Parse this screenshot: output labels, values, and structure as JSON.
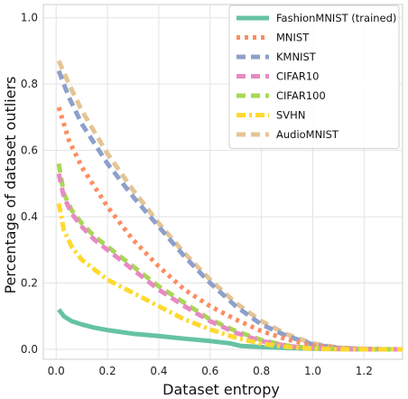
{
  "chart_data": {
    "type": "line",
    "title": "",
    "xlabel": "Dataset entropy",
    "ylabel": "Percentage of dataset outliers",
    "xlim": [
      -0.05,
      1.35
    ],
    "ylim": [
      -0.03,
      1.04
    ],
    "xticks": [
      "0.0",
      "0.2",
      "0.4",
      "0.6",
      "0.8",
      "1.0",
      "1.2"
    ],
    "yticks": [
      "0.0",
      "0.2",
      "0.4",
      "0.6",
      "0.8",
      "1.0"
    ],
    "xtick_values": [
      0.0,
      0.2,
      0.4,
      0.6,
      0.8,
      1.0,
      1.2
    ],
    "ytick_values": [
      0.0,
      0.2,
      0.4,
      0.6,
      0.8,
      1.0
    ],
    "grid": true,
    "legend_position": "top-right",
    "series": [
      {
        "name": "FashionMNIST (trained)",
        "color": "#66c2a5",
        "style": "solid",
        "x": [
          0.01,
          0.03,
          0.06,
          0.1,
          0.15,
          0.2,
          0.3,
          0.4,
          0.5,
          0.6,
          0.68,
          0.72,
          0.8,
          0.9,
          1.0,
          1.1,
          1.2,
          1.35
        ],
        "y": [
          0.12,
          0.1,
          0.085,
          0.075,
          0.065,
          0.058,
          0.047,
          0.04,
          0.032,
          0.025,
          0.018,
          0.01,
          0.007,
          0.004,
          0.002,
          0.001,
          0.0,
          0.0
        ]
      },
      {
        "name": "MNIST",
        "color": "#fc8d62",
        "style": "dotted",
        "x": [
          0.01,
          0.05,
          0.1,
          0.2,
          0.3,
          0.4,
          0.5,
          0.6,
          0.7,
          0.8,
          0.9,
          1.0,
          1.1,
          1.2,
          1.35
        ],
        "y": [
          0.73,
          0.63,
          0.55,
          0.43,
          0.33,
          0.25,
          0.18,
          0.13,
          0.09,
          0.055,
          0.03,
          0.012,
          0.004,
          0.001,
          0.0
        ]
      },
      {
        "name": "KMNIST",
        "color": "#8da0cb",
        "style": "dashed",
        "x": [
          0.01,
          0.05,
          0.1,
          0.2,
          0.3,
          0.4,
          0.5,
          0.6,
          0.7,
          0.8,
          0.9,
          1.0,
          1.1,
          1.2,
          1.35
        ],
        "y": [
          0.84,
          0.76,
          0.68,
          0.56,
          0.46,
          0.37,
          0.28,
          0.2,
          0.13,
          0.075,
          0.04,
          0.015,
          0.004,
          0.001,
          0.0
        ]
      },
      {
        "name": "CIFAR10",
        "color": "#e78ac3",
        "style": "dashed",
        "x": [
          0.01,
          0.03,
          0.06,
          0.1,
          0.15,
          0.2,
          0.3,
          0.4,
          0.5,
          0.6,
          0.7,
          0.8,
          0.9,
          1.0,
          1.1,
          1.2,
          1.35
        ],
        "y": [
          0.53,
          0.46,
          0.41,
          0.37,
          0.33,
          0.3,
          0.24,
          0.18,
          0.13,
          0.085,
          0.05,
          0.025,
          0.01,
          0.003,
          0.001,
          0.0,
          0.0
        ]
      },
      {
        "name": "CIFAR100",
        "color": "#a6d854",
        "style": "dashed",
        "x": [
          0.01,
          0.03,
          0.06,
          0.1,
          0.15,
          0.2,
          0.3,
          0.4,
          0.5,
          0.6,
          0.7,
          0.8,
          0.9,
          1.0,
          1.1,
          1.2,
          1.35
        ],
        "y": [
          0.56,
          0.47,
          0.42,
          0.38,
          0.34,
          0.31,
          0.25,
          0.19,
          0.14,
          0.09,
          0.055,
          0.028,
          0.011,
          0.003,
          0.001,
          0.0,
          0.0
        ]
      },
      {
        "name": "SVHN",
        "color": "#ffd92f",
        "style": "dashdot",
        "x": [
          0.01,
          0.03,
          0.06,
          0.1,
          0.15,
          0.2,
          0.3,
          0.4,
          0.5,
          0.6,
          0.7,
          0.8,
          0.9,
          1.0,
          1.1,
          1.2,
          1.35
        ],
        "y": [
          0.44,
          0.36,
          0.31,
          0.27,
          0.24,
          0.21,
          0.17,
          0.13,
          0.09,
          0.06,
          0.035,
          0.017,
          0.007,
          0.002,
          0.0,
          0.0,
          0.0
        ]
      },
      {
        "name": "AudioMNIST",
        "color": "#e5c494",
        "style": "dashed",
        "x": [
          0.01,
          0.05,
          0.1,
          0.2,
          0.3,
          0.4,
          0.5,
          0.6,
          0.7,
          0.8,
          0.9,
          1.0,
          1.1,
          1.2,
          1.35
        ],
        "y": [
          0.87,
          0.8,
          0.72,
          0.59,
          0.48,
          0.38,
          0.29,
          0.21,
          0.14,
          0.085,
          0.045,
          0.018,
          0.005,
          0.001,
          0.0
        ]
      }
    ]
  }
}
